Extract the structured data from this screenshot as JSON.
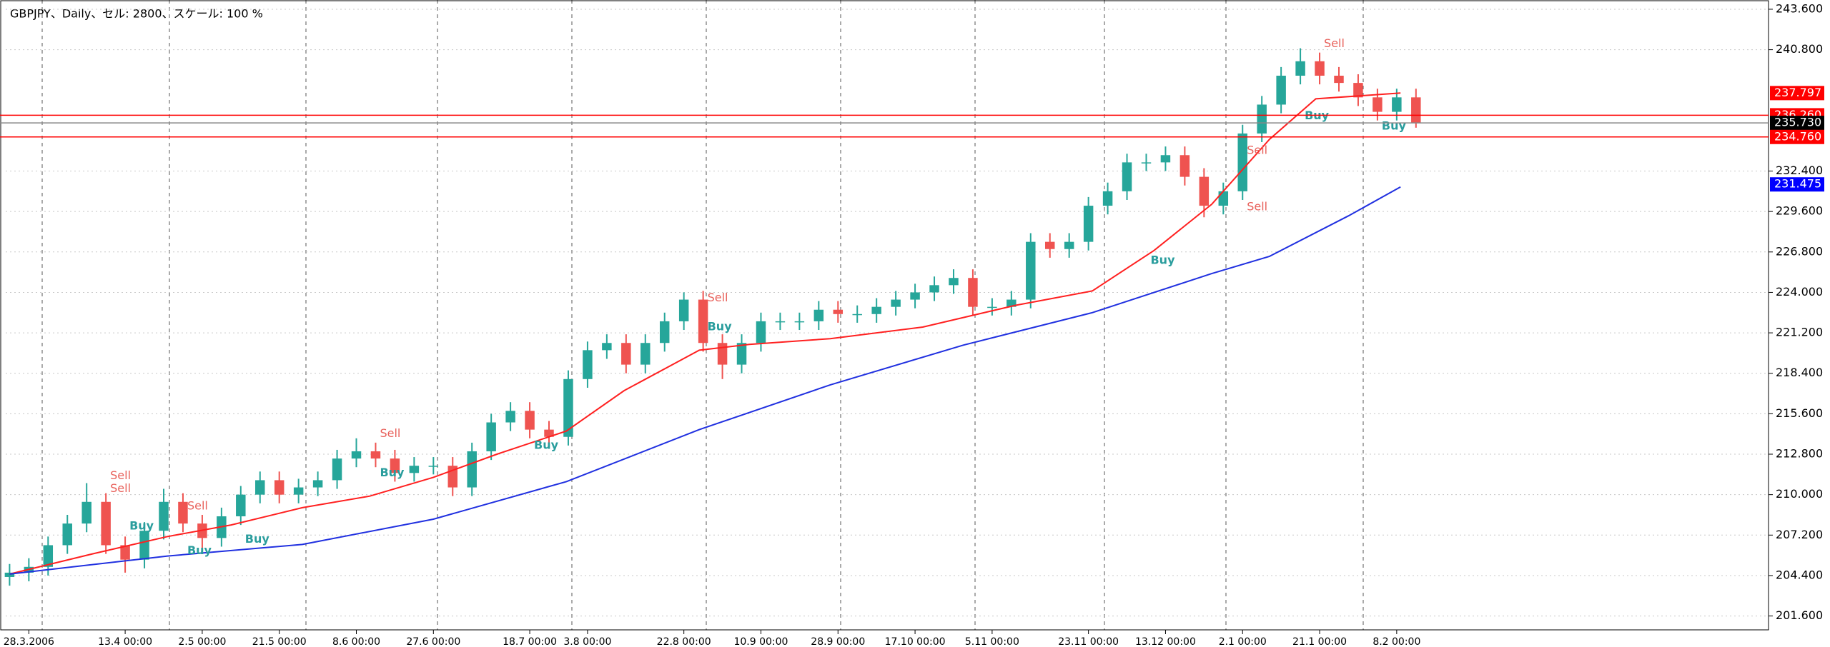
{
  "chart_data": {
    "type": "candlestick",
    "title": "GBPJPY、Daily、セル: 2800、スケール: 100 %",
    "up_color": "#26a69a",
    "down_color": "#ef5350",
    "xlim": [
      -0.2,
      91.3
    ],
    "ylim": [
      200.64,
      244.24
    ],
    "grid": true,
    "yticks": [
      {
        "value": 243.6,
        "label": "243.600"
      },
      {
        "value": 240.8,
        "label": "240.800"
      },
      {
        "value": 232.4,
        "label": "232.400"
      },
      {
        "value": 229.6,
        "label": "229.600"
      },
      {
        "value": 226.8,
        "label": "226.800"
      },
      {
        "value": 224,
        "label": "224.000"
      },
      {
        "value": 221.2,
        "label": "221.200"
      },
      {
        "value": 218.4,
        "label": "218.400"
      },
      {
        "value": 215.6,
        "label": "215.600"
      },
      {
        "value": 212.8,
        "label": "212.800"
      },
      {
        "value": 210,
        "label": "210.000"
      },
      {
        "value": 207.2,
        "label": "207.200"
      },
      {
        "value": 204.4,
        "label": "204.400"
      },
      {
        "value": 201.6,
        "label": "201.600"
      }
    ],
    "xticks": [
      {
        "value": 1,
        "label": "28.3.2006"
      },
      {
        "value": 6,
        "label": "13.4 00:00"
      },
      {
        "value": 10,
        "label": "2.5 00:00"
      },
      {
        "value": 14,
        "label": "21.5 00:00"
      },
      {
        "value": 18,
        "label": "8.6 00:00"
      },
      {
        "value": 22,
        "label": "27.6 00:00"
      },
      {
        "value": 27,
        "label": "18.7 00:00"
      },
      {
        "value": 30,
        "label": "3.8 00:00"
      },
      {
        "value": 35,
        "label": "22.8 00:00"
      },
      {
        "value": 39,
        "label": "10.9 00:00"
      },
      {
        "value": 43,
        "label": "28.9 00:00"
      },
      {
        "value": 47,
        "label": "17.10 00:00"
      },
      {
        "value": 51,
        "label": "5.11 00:00"
      },
      {
        "value": 56,
        "label": "23.11 00:00"
      },
      {
        "value": 60,
        "label": "13.12 00:00"
      },
      {
        "value": 64,
        "label": "2.1 00:00"
      },
      {
        "value": 68,
        "label": "21.1 00:00"
      },
      {
        "value": 72,
        "label": "8.2 00:00"
      }
    ],
    "open": [
      204.3,
      204.6,
      205.0,
      206.5,
      208.0,
      209.5,
      206.5,
      205.5,
      207.5,
      209.5,
      208.0,
      207.0,
      208.5,
      210.0,
      211.0,
      210.0,
      210.5,
      211.0,
      212.5,
      213.0,
      212.5,
      211.5,
      212.0,
      212.0,
      210.5,
      213.0,
      215.0,
      215.8,
      214.5,
      214.0,
      218.0,
      220.0,
      220.5,
      219.0,
      220.5,
      222.0,
      223.5,
      220.5,
      219.0,
      220.5,
      222.0,
      222.0,
      222.0,
      222.8,
      222.5,
      222.5,
      223.0,
      223.5,
      224.0,
      224.5,
      225.0,
      223.0,
      223.0,
      223.5,
      227.5,
      227.0,
      227.5,
      230.0,
      231.0,
      233.0,
      233.0,
      233.5,
      232.0,
      230.0,
      231.0,
      235.0,
      237.0,
      239.0,
      240.0,
      239.0,
      238.5,
      237.5,
      236.5,
      237.5
    ],
    "high": [
      205.2,
      205.6,
      207.1,
      208.6,
      210.8,
      210.1,
      207.1,
      208.1,
      210.4,
      210.1,
      208.6,
      209.1,
      210.6,
      211.6,
      211.6,
      211.1,
      211.6,
      213.1,
      213.9,
      213.6,
      213.1,
      212.6,
      212.6,
      212.6,
      213.6,
      215.6,
      216.4,
      216.4,
      215.1,
      218.6,
      220.6,
      221.1,
      221.1,
      221.1,
      222.6,
      224.0,
      224.1,
      221.1,
      221.1,
      222.6,
      222.6,
      222.6,
      223.4,
      223.4,
      223.1,
      223.6,
      224.1,
      224.6,
      225.1,
      225.6,
      225.6,
      223.6,
      224.1,
      228.1,
      228.1,
      228.1,
      230.6,
      231.6,
      233.6,
      233.6,
      234.1,
      234.1,
      232.6,
      231.6,
      235.6,
      237.6,
      239.6,
      240.9,
      240.6,
      239.6,
      239.1,
      238.1,
      238.1,
      238.1
    ],
    "low": [
      203.7,
      204.0,
      204.4,
      205.9,
      207.4,
      205.9,
      204.6,
      204.9,
      206.9,
      207.4,
      206.2,
      206.4,
      207.9,
      209.4,
      209.4,
      209.4,
      209.9,
      210.4,
      211.9,
      211.9,
      210.9,
      210.9,
      211.4,
      209.9,
      209.9,
      212.4,
      214.4,
      213.9,
      213.2,
      213.4,
      217.4,
      219.4,
      218.4,
      218.4,
      219.9,
      221.4,
      219.9,
      218.0,
      218.4,
      219.9,
      221.4,
      221.4,
      221.4,
      221.9,
      221.9,
      221.9,
      222.4,
      222.9,
      223.4,
      223.9,
      222.4,
      222.4,
      222.4,
      222.9,
      226.4,
      226.4,
      226.9,
      229.4,
      230.4,
      232.4,
      232.4,
      231.4,
      229.2,
      229.4,
      230.4,
      234.4,
      236.4,
      238.4,
      238.4,
      237.9,
      236.9,
      235.9,
      235.9,
      235.4
    ],
    "close": [
      204.6,
      205.0,
      206.5,
      208.0,
      209.5,
      206.5,
      205.5,
      207.5,
      209.5,
      208.0,
      207.0,
      208.5,
      210.0,
      211.0,
      210.0,
      210.5,
      211.0,
      212.5,
      213.0,
      212.5,
      211.5,
      212.0,
      212.0,
      210.5,
      213.0,
      215.0,
      215.8,
      214.5,
      214.0,
      218.0,
      220.0,
      220.5,
      219.0,
      220.5,
      222.0,
      223.5,
      220.5,
      219.0,
      220.5,
      222.0,
      222.0,
      222.0,
      222.8,
      222.5,
      222.5,
      223.0,
      223.5,
      224.0,
      224.5,
      225.0,
      223.0,
      223.0,
      223.5,
      227.5,
      227.0,
      227.5,
      230.0,
      231.0,
      233.0,
      233.0,
      233.5,
      232.0,
      230.0,
      231.0,
      235.0,
      237.0,
      239.0,
      240.0,
      239.0,
      238.5,
      237.5,
      236.5,
      237.5,
      235.73
    ],
    "series": [
      {
        "color": "#ff2020",
        "x": [
          0,
          4.3,
          8.2,
          11.5,
          15.2,
          18.7,
          22,
          25.3,
          28.9,
          31.9,
          35.8,
          38.4,
          42.6,
          47.4,
          52.2,
          56.2,
          59.4,
          62.4,
          65.4,
          67.8,
          72.2
        ],
        "values": [
          204.5,
          205.9,
          207.1,
          207.9,
          209.1,
          209.9,
          211.2,
          212.8,
          214.4,
          217.2,
          220.0,
          220.4,
          220.8,
          221.6,
          223.1,
          224.1,
          226.9,
          230.1,
          234.6,
          237.4,
          237.8
        ]
      },
      {
        "color": "#2030e0",
        "x": [
          0,
          8.2,
          15.2,
          22,
          28.9,
          35.8,
          42.6,
          49.5,
          56.2,
          62.4,
          65.4,
          69.5,
          72.2
        ],
        "values": [
          204.5,
          205.75,
          206.55,
          208.3,
          210.9,
          214.5,
          217.6,
          220.35,
          222.6,
          225.3,
          226.5,
          229.3,
          231.3
        ]
      }
    ],
    "levels": [
      {
        "value": 237.797,
        "label": "237.797",
        "color": "#ff0000",
        "line": false
      },
      {
        "value": 236.26,
        "label": "236.260",
        "color": "#ff0000",
        "line": true
      },
      {
        "value": 235.73,
        "label": "235.730",
        "color": "#000000",
        "line": true
      },
      {
        "value": 234.76,
        "label": "234.760",
        "color": "#ff0000",
        "line": true
      },
      {
        "value": 231.475,
        "label": "231.475",
        "color": "#0000ff",
        "line": false
      }
    ],
    "annotation_colors": {
      "Sell": "#e8605a",
      "Buy": "#2a9d9d"
    },
    "annotations": [
      {
        "label": "Sell",
        "x": 5,
        "y": 211.3
      },
      {
        "label": "Sell",
        "x": 5,
        "y": 210.4
      },
      {
        "label": "Buy",
        "x": 6,
        "y": 207.8
      },
      {
        "label": "Sell",
        "x": 9,
        "y": 209.2
      },
      {
        "label": "Buy",
        "x": 9,
        "y": 206.1
      },
      {
        "label": "Buy",
        "x": 12,
        "y": 206.9
      },
      {
        "label": "Sell",
        "x": 19,
        "y": 214.2
      },
      {
        "label": "Buy",
        "x": 19,
        "y": 211.5
      },
      {
        "label": "Buy",
        "x": 27,
        "y": 213.4
      },
      {
        "label": "Sell",
        "x": 36,
        "y": 223.6
      },
      {
        "label": "Buy",
        "x": 36,
        "y": 221.6
      },
      {
        "label": "Buy",
        "x": 59,
        "y": 226.2
      },
      {
        "label": "Sell",
        "x": 64,
        "y": 229.9
      },
      {
        "label": "Sell",
        "x": 64,
        "y": 233.8
      },
      {
        "label": "Buy",
        "x": 67,
        "y": 236.2
      },
      {
        "label": "Sell",
        "x": 68,
        "y": 241.2
      },
      {
        "label": "Buy",
        "x": 71,
        "y": 235.5
      }
    ]
  }
}
